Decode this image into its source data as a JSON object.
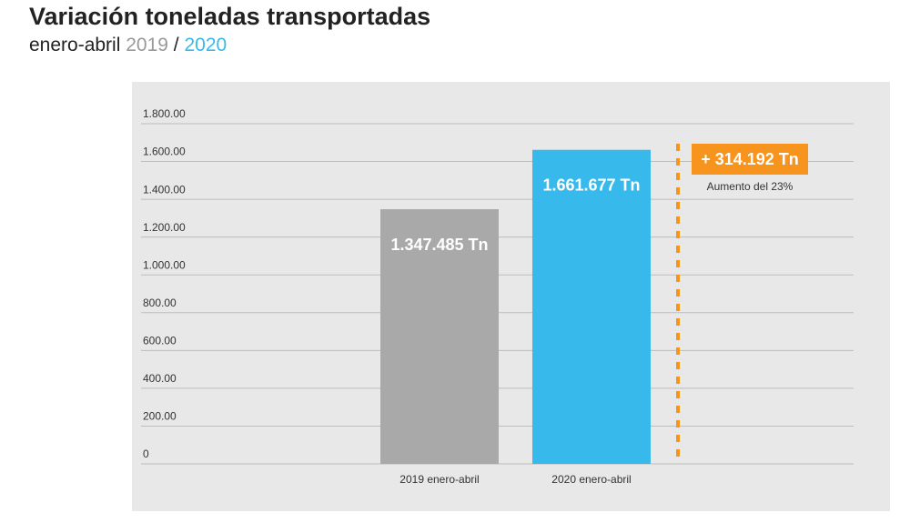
{
  "chart_data": {
    "type": "bar",
    "title": "Variación toneladas transportadas",
    "subtitle": {
      "period": "enero-abril",
      "year_a": "2019",
      "separator": "/",
      "year_b": "2020"
    },
    "categories": [
      "2019 enero-abril",
      "2020 enero-abril"
    ],
    "values": [
      1347.485,
      1661.677
    ],
    "value_labels": [
      "1.347.485 Tn",
      "1.661.677 Tn"
    ],
    "colors": [
      "#a9a9a9",
      "#37b9eb"
    ],
    "ylim": [
      0,
      1800
    ],
    "yticks": [
      0,
      {
        "value": 200,
        "label": "200.00"
      },
      {
        "value": 400,
        "label": "400.00"
      },
      {
        "value": 600,
        "label": "600.00"
      },
      {
        "value": 800,
        "label": "800.00"
      },
      {
        "value": 1000,
        "label": "1.000.00"
      },
      {
        "value": 1200,
        "label": "1.200.00"
      },
      {
        "value": 1400,
        "label": "1.400.00"
      },
      {
        "value": 1600,
        "label": "1.600.00"
      },
      {
        "value": 1800,
        "label": "1.800.00"
      }
    ],
    "grid": true,
    "annotation": {
      "value": 314.192,
      "label": "+ 314.192 Tn",
      "note": "Aumento del 23%",
      "color": "#f7941d"
    }
  }
}
